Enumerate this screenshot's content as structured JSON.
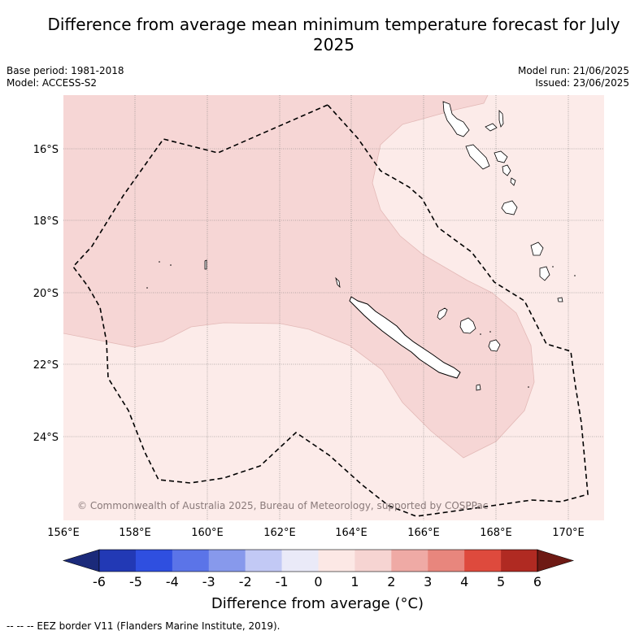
{
  "title": "Difference from average mean minimum temperature forecast for July 2025",
  "meta_left": [
    "Base period: 1981-2018",
    "Model: ACCESS-S2"
  ],
  "meta_right": [
    "Model run: 21/06/2025",
    "Issued: 23/06/2025"
  ],
  "copyright": "© Commonwealth of Australia 2025, Bureau of Meteorology, supported by COSPPac",
  "axes": {
    "lon_labels": [
      "156°E",
      "158°E",
      "160°E",
      "162°E",
      "164°E",
      "166°E",
      "168°E",
      "170°E"
    ],
    "lat_labels": [
      "16°S",
      "18°S",
      "20°S",
      "22°S",
      "24°S"
    ]
  },
  "colorbar": {
    "title": "Difference from average (°C)",
    "tick_labels": [
      "-6",
      "-5",
      "-4",
      "-3",
      "-2",
      "-1",
      "0",
      "1",
      "2",
      "3",
      "4",
      "5",
      "6"
    ],
    "colors": [
      "#1b2a7a",
      "#2239b5",
      "#2f4fe0",
      "#5b74e8",
      "#8799ec",
      "#c2c9f5",
      "#eaeaf8",
      "#fce8e5",
      "#f6d4d2",
      "#efaaa5",
      "#e8867d",
      "#de4a3d",
      "#b02a22",
      "#6e1a14"
    ]
  },
  "legend_note": "--  --  -- EEZ border V11 (Flanders Marine Institute, 2019).",
  "icons": [
    "extend-arrow-left-icon",
    "extend-arrow-right-icon"
  ]
}
